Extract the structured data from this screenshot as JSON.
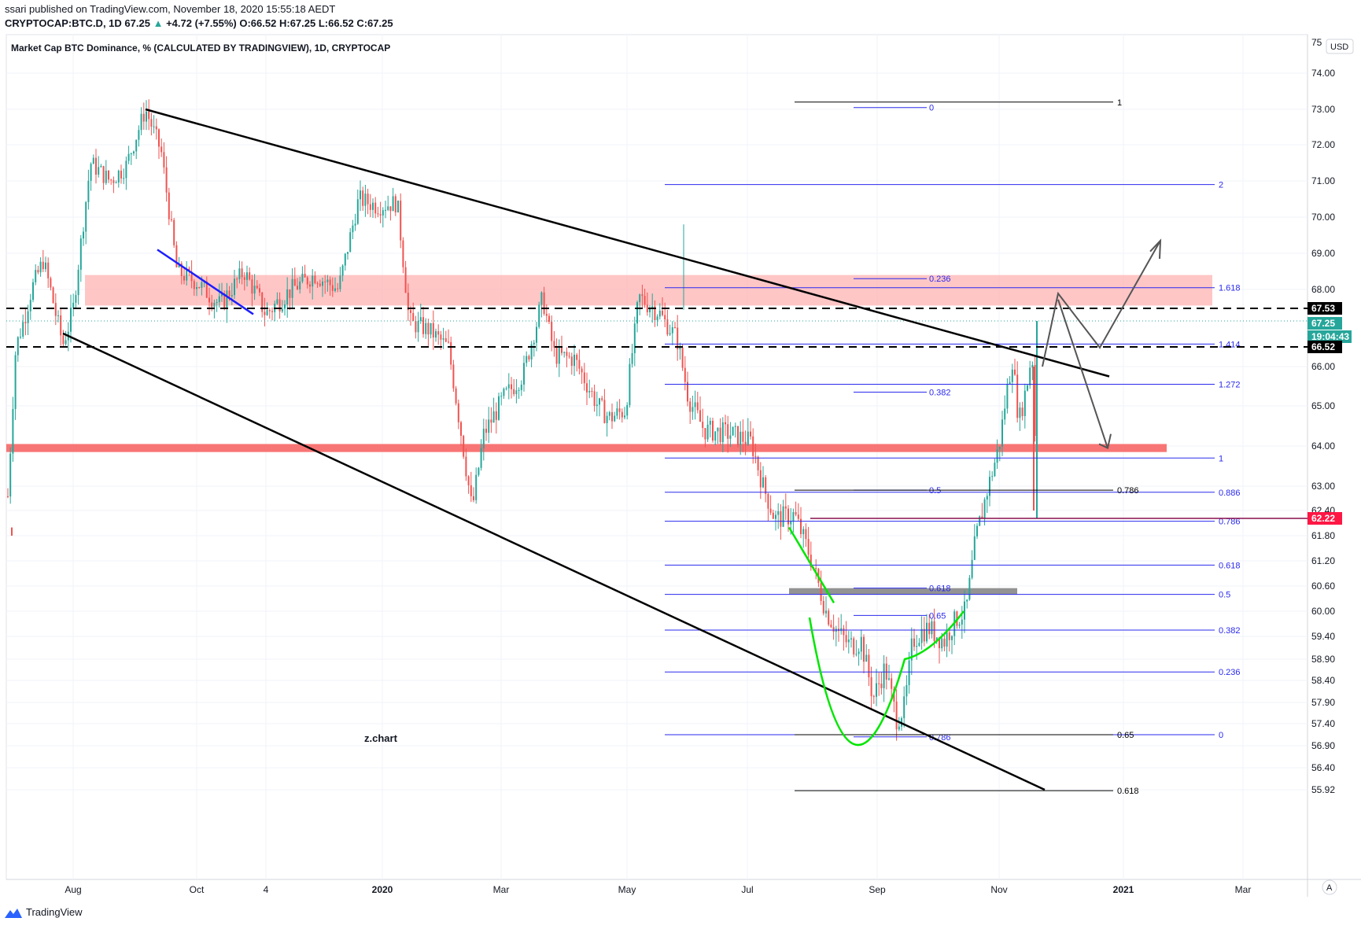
{
  "header": {
    "published": "ssari published on TradingView.com, November 18, 2020 15:55:18 AEDT",
    "symbol": "CRYPTOCAP:BTC.D, 1D",
    "last": "67.25",
    "change": "+4.72 (+7.55%)",
    "open_label": "O:",
    "open": "66.52",
    "high_label": "H:",
    "high": "67.25",
    "low_label": "L:",
    "low": "66.52",
    "close_label": "C:",
    "close": "67.25"
  },
  "footer": {
    "brand": "TradingView"
  },
  "colors": {
    "up": "#26a69a",
    "down": "#ef5350",
    "fib": "#2a2aee",
    "trend": "#000000",
    "resistance_zone": "#ffb3b3",
    "support_band": "#f87575",
    "cup": "#00e600",
    "grey_zone": "#808080"
  },
  "chart_data": {
    "type": "candlestick",
    "title": "Market Cap BTC Dominance, % (CALCULATED BY TRADINGVIEW), 1D, CRYPTOCAP",
    "currency_button": "USD",
    "auto_button": "A",
    "x_ticks": [
      "Aug",
      "Oct",
      "4",
      "2020",
      "Mar",
      "May",
      "Jul",
      "Sep",
      "Nov",
      "2021",
      "Mar"
    ],
    "y_ticks": [
      "74.00",
      "73.00",
      "72.00",
      "71.00",
      "70.00",
      "69.00",
      "68.00",
      "66.00",
      "65.00",
      "64.00",
      "63.00",
      "62.40",
      "61.80",
      "61.20",
      "60.60",
      "60.00",
      "59.40",
      "58.90",
      "58.40",
      "57.90",
      "57.40",
      "56.90",
      "56.40",
      "55.92"
    ],
    "y_top_clipped": "75",
    "price_labels": [
      {
        "text": "67.53",
        "style": "dark"
      },
      {
        "text": "67.25",
        "style": "green"
      },
      {
        "text": "19:04:43",
        "style": "green"
      },
      {
        "text": "66.52",
        "style": "dark"
      },
      {
        "text": "62.22",
        "style": "red"
      }
    ],
    "watermark": "z.chart",
    "fib_levels_right": [
      {
        "label": "2",
        "value": 70.9
      },
      {
        "label": "1.618",
        "value": 68.05
      },
      {
        "label": "1.414",
        "value": 66.6
      },
      {
        "label": "1.272",
        "value": 65.55
      },
      {
        "label": "1",
        "value": 63.7
      },
      {
        "label": "0.886",
        "value": 62.85
      },
      {
        "label": "0.786",
        "value": 62.15
      },
      {
        "label": "0.618",
        "value": 61.1
      },
      {
        "label": "0.5",
        "value": 60.4
      },
      {
        "label": "0.382",
        "value": 59.55
      },
      {
        "label": "0.236",
        "value": 58.6
      },
      {
        "label": "0",
        "value": 57.15
      }
    ],
    "fib_levels_inner": [
      {
        "label": "0",
        "value": 73.05
      },
      {
        "label": "0.236",
        "value": 68.3
      },
      {
        "label": "0.382",
        "value": 65.35
      },
      {
        "label": "0.5",
        "value": 62.9
      },
      {
        "label": "0.618",
        "value": 60.55
      },
      {
        "label": "0.65",
        "value": 59.9
      },
      {
        "label": "0.786",
        "value": 57.1
      }
    ],
    "fib_levels_black": [
      {
        "label": "1",
        "value": 73.2
      },
      {
        "label": "0.786",
        "value": 62.9
      },
      {
        "label": "0.65",
        "value": 57.15
      },
      {
        "label": "0.618",
        "value": 55.9
      }
    ],
    "horizontal_levels": [
      67.53,
      66.52,
      62.22
    ],
    "candles_summary": [
      {
        "date": "Jul 2019",
        "close": 62.0
      },
      {
        "date": "Aug 2019",
        "close": 70.5
      },
      {
        "date": "Sep 2019",
        "close": 73.0
      },
      {
        "date": "Oct 2019",
        "close": 68.0
      },
      {
        "date": "Nov 2019",
        "close": 67.5
      },
      {
        "date": "Dec 2019",
        "close": 70.5
      },
      {
        "date": "Jan 2020",
        "close": 67.2
      },
      {
        "date": "Feb 2020",
        "close": 62.5
      },
      {
        "date": "Mar 2020",
        "close": 66.0
      },
      {
        "date": "Apr 2020",
        "close": 65.0
      },
      {
        "date": "May 2020",
        "close": 68.0
      },
      {
        "date": "Jun 2020",
        "close": 64.2
      },
      {
        "date": "Jul 2020",
        "close": 62.5
      },
      {
        "date": "Aug 2020",
        "close": 59.0
      },
      {
        "date": "Sep 2020",
        "close": 57.8
      },
      {
        "date": "Oct 2020",
        "close": 61.0
      },
      {
        "date": "Nov 2020",
        "close": 67.25
      }
    ]
  }
}
